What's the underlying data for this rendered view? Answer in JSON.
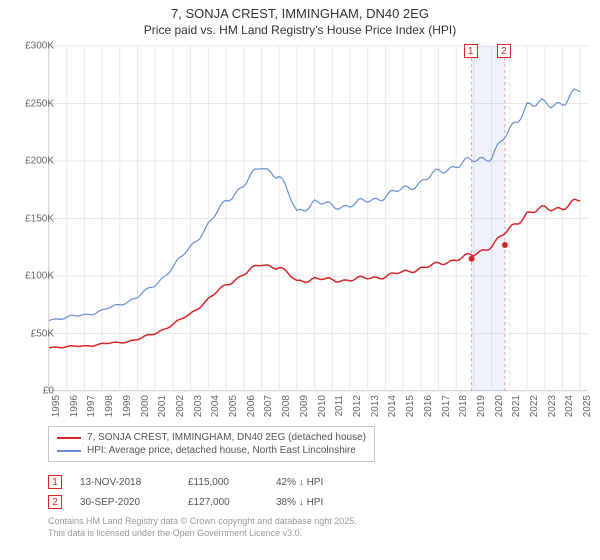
{
  "title": "7, SONJA CREST, IMMINGHAM, DN40 2EG",
  "subtitle": "Price paid vs. HM Land Registry's House Price Index (HPI)",
  "chart": {
    "type": "line",
    "xlim": [
      1995,
      2025.5
    ],
    "ylim": [
      0,
      300000
    ],
    "ytick_step": 50000,
    "ytick_labels": [
      "£0",
      "£50K",
      "£100K",
      "£150K",
      "£200K",
      "£250K",
      "£300K"
    ],
    "xtick_years": [
      1995,
      1996,
      1997,
      1998,
      1999,
      2000,
      2001,
      2002,
      2003,
      2004,
      2005,
      2006,
      2007,
      2008,
      2009,
      2010,
      2011,
      2012,
      2013,
      2014,
      2015,
      2016,
      2017,
      2018,
      2019,
      2020,
      2021,
      2022,
      2023,
      2024,
      2025
    ],
    "grid_color": "#e8e8e8",
    "axis_color": "#c6c6c6",
    "background_color": "#ffffff",
    "series": [
      {
        "name": "price_paid",
        "label": "7, SONJA CREST, IMMINGHAM, DN40 2EG (detached house)",
        "color": "#d62728",
        "width": 1.5,
        "y": [
          38000,
          38500,
          39000,
          41000,
          42000,
          45000,
          50000,
          58000,
          67000,
          80000,
          92000,
          102000,
          110000,
          108000,
          95000,
          98000,
          96000,
          97000,
          98000,
          100000,
          103000,
          107000,
          110000,
          115000,
          118000,
          127000,
          140000,
          155000,
          158000,
          160000,
          165000
        ]
      },
      {
        "name": "hpi",
        "label": "HPI: Average price, detached house, North East Lincolnshire",
        "color": "#6a8fd4",
        "width": 1.2,
        "y": [
          62000,
          64000,
          66000,
          70000,
          75000,
          82000,
          92000,
          108000,
          125000,
          145000,
          165000,
          180000,
          195000,
          188000,
          155000,
          165000,
          160000,
          162000,
          165000,
          170000,
          175000,
          182000,
          190000,
          197000,
          200000,
          205000,
          225000,
          250000,
          248000,
          252000,
          260000
        ]
      }
    ],
    "markers": [
      {
        "id": "1",
        "x": 2018.87,
        "price": 115000
      },
      {
        "id": "2",
        "x": 2020.75,
        "price": 127000
      }
    ],
    "marker_box_color": "#d62728"
  },
  "legend": {
    "rows": [
      {
        "color": "#d62728",
        "label": "7, SONJA CREST, IMMINGHAM, DN40 2EG (detached house)"
      },
      {
        "color": "#6a8fd4",
        "label": "HPI: Average price, detached house, North East Lincolnshire"
      }
    ]
  },
  "table": {
    "rows": [
      {
        "id": "1",
        "date": "13-NOV-2018",
        "price": "£115,000",
        "pct": "42% ↓ HPI"
      },
      {
        "id": "2",
        "date": "30-SEP-2020",
        "price": "£127,000",
        "pct": "38% ↓ HPI"
      }
    ]
  },
  "footer": {
    "line1": "Contains HM Land Registry data © Crown copyright and database right 2025.",
    "line2": "This data is licensed under the Open Government Licence v3.0."
  }
}
